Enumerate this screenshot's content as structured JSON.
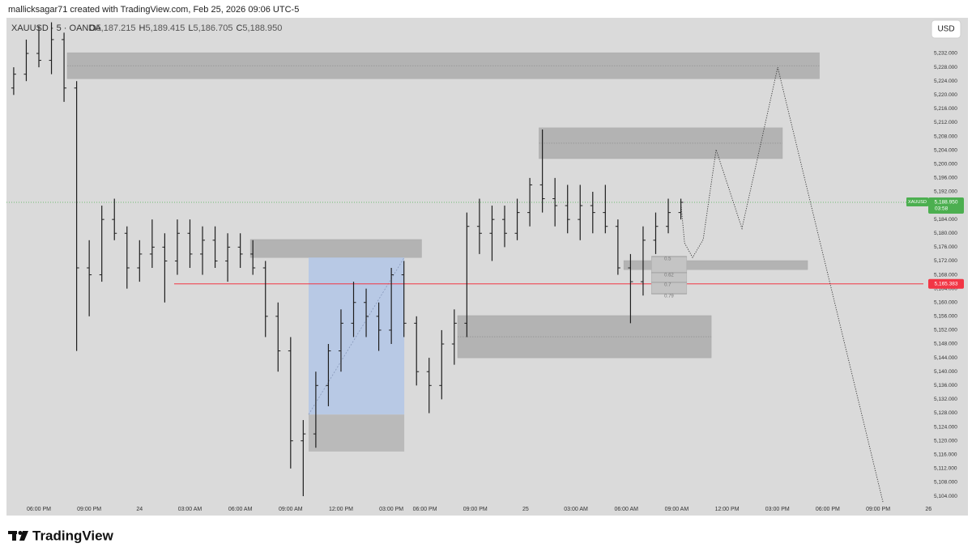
{
  "chart_data": {
    "type": "ohlc",
    "credit": "mallicksagar71 created with TradingView.com, Feb 25, 2026 09:06 UTC-5",
    "symbol_line": "XAUUSD · 5 · OANDA",
    "header_ohlc": [
      {
        "key": "O",
        "value": 5187.215,
        "label": "5,187.215"
      },
      {
        "key": "H",
        "value": 5189.415,
        "label": "5,189.415"
      },
      {
        "key": "L",
        "value": 5186.705,
        "label": "5,186.705"
      },
      {
        "key": "C",
        "value": 5188.95,
        "label": "5,188.950"
      }
    ],
    "currency": "USD",
    "brand": "TradingView",
    "bar_color": "#1e1e1e",
    "x": [
      -1.5,
      -0.75,
      0,
      0.75,
      1.5,
      2.25,
      3,
      3.75,
      4.5,
      5.25,
      6,
      6.75,
      7.5,
      8.25,
      9,
      9.75,
      10.5,
      11.25,
      12,
      12.75,
      13.5,
      14.25,
      15,
      15.75,
      16.5,
      17.25,
      18,
      18.75,
      19.5,
      20.25,
      21,
      21.75,
      22.5,
      23.25,
      24,
      24.75,
      25.5,
      26.25,
      27,
      27.75,
      28.5,
      29.25,
      30,
      30.75,
      31.5,
      32.25,
      33,
      33.75,
      34.5,
      35.25,
      36,
      36.75,
      37.5,
      38.25
    ],
    "open": [
      5222,
      5226,
      5232,
      5230,
      5236,
      5222,
      5170,
      5168,
      5184,
      5180,
      5170,
      5174,
      5176,
      5172,
      5180,
      5174,
      5178,
      5172,
      5176,
      5174,
      5170,
      5156,
      5146,
      5120,
      5122,
      5136,
      5146,
      5154,
      5160,
      5156,
      5152,
      5168,
      5154,
      5140,
      5136,
      5148,
      5154,
      5182,
      5180,
      5184,
      5180,
      5186,
      5194,
      5190,
      5188,
      5184,
      5188,
      5186,
      5182,
      5170,
      5166,
      5178,
      5182,
      5186
    ],
    "high": [
      5228,
      5236,
      5240,
      5241,
      5238,
      5224,
      5178,
      5188,
      5190,
      5182,
      5178,
      5184,
      5180,
      5184,
      5184,
      5182,
      5182,
      5180,
      5180,
      5178,
      5172,
      5160,
      5150,
      5126,
      5140,
      5148,
      5158,
      5166,
      5164,
      5160,
      5170,
      5172,
      5156,
      5144,
      5152,
      5158,
      5186,
      5190,
      5188,
      5188,
      5190,
      5196,
      5210,
      5196,
      5194,
      5194,
      5192,
      5194,
      5184,
      5174,
      5182,
      5186,
      5190,
      5190
    ],
    "low": [
      5220,
      5224,
      5228,
      5226,
      5218,
      5146,
      5156,
      5166,
      5178,
      5164,
      5166,
      5170,
      5160,
      5168,
      5170,
      5168,
      5170,
      5166,
      5170,
      5168,
      5150,
      5140,
      5112,
      5104,
      5118,
      5130,
      5140,
      5150,
      5150,
      5146,
      5148,
      5150,
      5136,
      5128,
      5132,
      5142,
      5150,
      5174,
      5172,
      5176,
      5178,
      5182,
      5186,
      5182,
      5180,
      5178,
      5180,
      5180,
      5168,
      5154,
      5162,
      5174,
      5180,
      5184
    ],
    "close": [
      5226,
      5232,
      5230,
      5236,
      5222,
      5170,
      5168,
      5184,
      5180,
      5170,
      5174,
      5176,
      5172,
      5180,
      5174,
      5178,
      5172,
      5176,
      5174,
      5170,
      5156,
      5146,
      5120,
      5122,
      5136,
      5146,
      5154,
      5160,
      5156,
      5152,
      5168,
      5154,
      5140,
      5136,
      5148,
      5154,
      5182,
      5180,
      5184,
      5180,
      5186,
      5194,
      5190,
      5188,
      5184,
      5188,
      5186,
      5182,
      5170,
      5166,
      5178,
      5182,
      5186,
      5188.95
    ],
    "xlim": [
      -1.93,
      52.7
    ],
    "xticks": [
      {
        "value": 0,
        "label": "06:00 PM"
      },
      {
        "value": 3,
        "label": "09:00 PM"
      },
      {
        "value": 6,
        "label": "24"
      },
      {
        "value": 9,
        "label": "03:00 AM"
      },
      {
        "value": 12,
        "label": "06:00 AM"
      },
      {
        "value": 15,
        "label": "09:00 AM"
      },
      {
        "value": 18,
        "label": "12:00 PM"
      },
      {
        "value": 21,
        "label": "03:00 PM"
      },
      {
        "value": 23,
        "label": "06:00 PM"
      },
      {
        "value": 26,
        "label": "09:00 PM"
      },
      {
        "value": 29,
        "label": "25"
      },
      {
        "value": 32,
        "label": "03:00 AM"
      },
      {
        "value": 35,
        "label": "06:00 AM"
      },
      {
        "value": 38,
        "label": "09:00 AM"
      },
      {
        "value": 41,
        "label": "12:00 PM"
      },
      {
        "value": 44,
        "label": "03:00 PM"
      },
      {
        "value": 47,
        "label": "06:00 PM"
      },
      {
        "value": 50,
        "label": "09:00 PM"
      },
      {
        "value": 53,
        "label": "26"
      }
    ],
    "ylim": [
      5098.4,
      5242.3
    ],
    "yticks": [
      {
        "value": 5104,
        "label": "5,104.000"
      },
      {
        "value": 5108,
        "label": "5,108.000"
      },
      {
        "value": 5112,
        "label": "5,112.000"
      },
      {
        "value": 5116,
        "label": "5,116.000"
      },
      {
        "value": 5120,
        "label": "5,120.000"
      },
      {
        "value": 5124,
        "label": "5,124.000"
      },
      {
        "value": 5128,
        "label": "5,128.000"
      },
      {
        "value": 5132,
        "label": "5,132.000"
      },
      {
        "value": 5136,
        "label": "5,136.000"
      },
      {
        "value": 5140,
        "label": "5,140.000"
      },
      {
        "value": 5144,
        "label": "5,144.000"
      },
      {
        "value": 5148,
        "label": "5,148.000"
      },
      {
        "value": 5152,
        "label": "5,152.000"
      },
      {
        "value": 5156,
        "label": "5,156.000"
      },
      {
        "value": 5160,
        "label": "5,160.000"
      },
      {
        "value": 5164,
        "label": "5,164.000"
      },
      {
        "value": 5168,
        "label": "5,168.000"
      },
      {
        "value": 5172,
        "label": "5,172.000"
      },
      {
        "value": 5176,
        "label": "5,176.000"
      },
      {
        "value": 5180,
        "label": "5,180.000"
      },
      {
        "value": 5184,
        "label": "5,184.000"
      },
      {
        "value": 5188,
        "label": "5,188.000"
      },
      {
        "value": 5192,
        "label": "5,192.000"
      },
      {
        "value": 5196,
        "label": "5,196.000"
      },
      {
        "value": 5200,
        "label": "5,200.000"
      },
      {
        "value": 5204,
        "label": "5,204.000"
      },
      {
        "value": 5208,
        "label": "5,208.000"
      },
      {
        "value": 5212,
        "label": "5,212.000"
      },
      {
        "value": 5216,
        "label": "5,216.000"
      },
      {
        "value": 5220,
        "label": "5,220.000"
      },
      {
        "value": 5224,
        "label": "5,224.000"
      },
      {
        "value": 5228,
        "label": "5,228.000"
      },
      {
        "value": 5232,
        "label": "5,232.000"
      }
    ],
    "grid": false,
    "zones": [
      {
        "x": [
          1.69,
          46.5
        ],
        "y": [
          5224.7,
          5232.2
        ],
        "color": "#b3b3b3",
        "midline": true
      },
      {
        "x": [
          29.8,
          44.3
        ],
        "y": [
          5201.6,
          5210.5
        ],
        "color": "#b3b3b3",
        "midline": true
      },
      {
        "x": [
          12.6,
          22.8
        ],
        "y": [
          5173.0,
          5178.2
        ],
        "color": "#b3b3b3",
        "midline": false
      },
      {
        "x": [
          24.95,
          40.06
        ],
        "y": [
          5144.0,
          5156.2
        ],
        "color": "#b3b3b3",
        "midline": true
      },
      {
        "x": [
          34.85,
          45.8
        ],
        "y": [
          5169.5,
          5172.1
        ],
        "color": "#b3b3b3",
        "midline": false
      }
    ],
    "position": {
      "x": [
        16.07,
        21.77
      ],
      "entry": 5127.6,
      "target": 5173.0,
      "stop": 5116.9,
      "target_color": "#b4c6e6",
      "stop_color": "#bababa"
    },
    "fib": {
      "x": [
        36.5,
        38.6
      ],
      "levels": [
        {
          "ratio": 0.5,
          "price": 5173.3
        },
        {
          "ratio": 0.62,
          "price": 5168.6
        },
        {
          "ratio": 0.7,
          "price": 5165.8
        },
        {
          "ratio": 0.79,
          "price": 5162.5
        }
      ]
    },
    "projection": {
      "x": [
        38.25,
        38.47,
        38.95,
        39.58,
        40.35,
        41.89,
        44.02,
        50.29
      ],
      "y": [
        5188.95,
        5177.2,
        5173.0,
        5178.2,
        5204.2,
        5181.4,
        5228.0,
        5102.3
      ]
    },
    "level_line": {
      "value": 5165.383,
      "label": "5,165.383",
      "x_start": 8.06,
      "color": "#f23645"
    },
    "last_price": {
      "value": 5188.95,
      "label": "5,188.950",
      "symbol": "XAUUSD",
      "countdown": "03:58",
      "color": "#4caf50"
    }
  }
}
